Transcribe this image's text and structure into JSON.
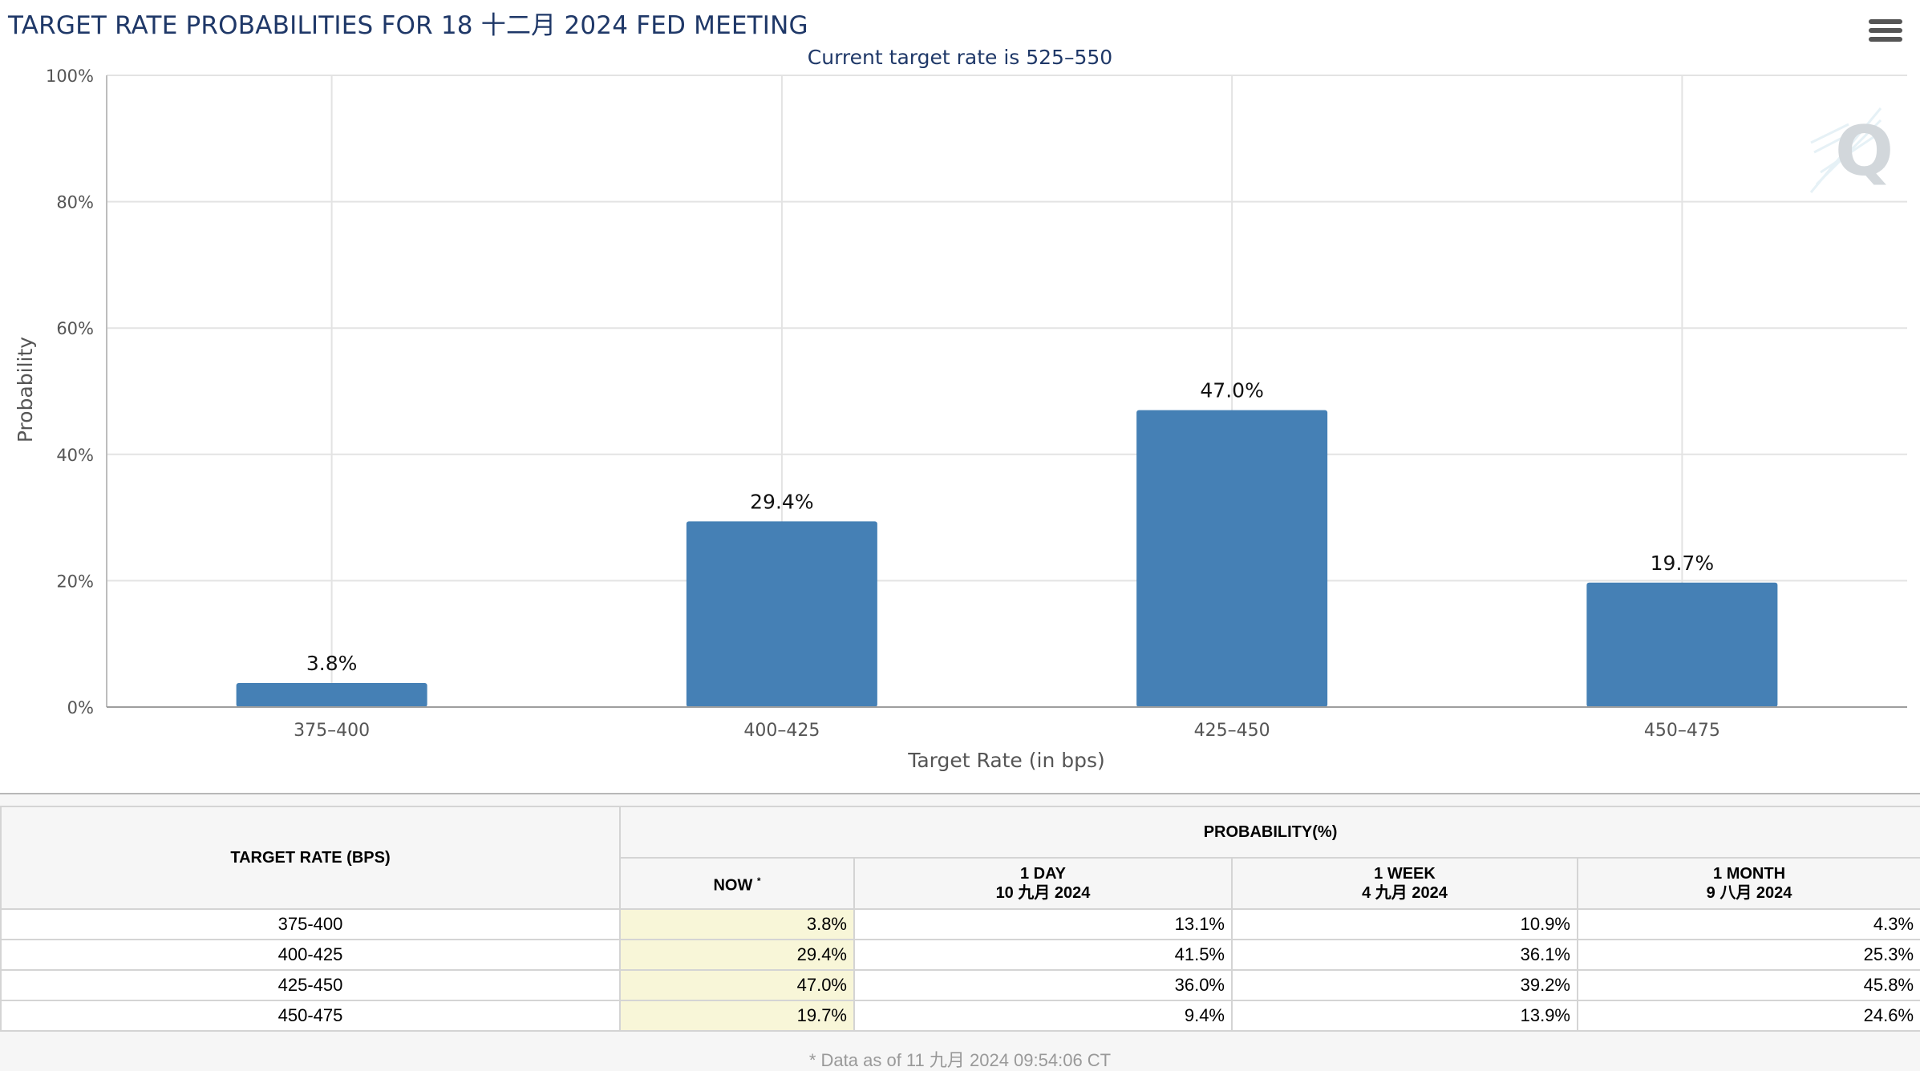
{
  "header": {
    "title": "TARGET RATE PROBABILITIES FOR 18 十二月 2024 FED MEETING",
    "subtitle": "Current target rate is 525–550"
  },
  "colors": {
    "bar": "#4580b5",
    "title": "#1f3868",
    "now_highlight": "#f8f6d8"
  },
  "chart_data": {
    "type": "bar",
    "title": "TARGET RATE PROBABILITIES FOR 18 十二月 2024 FED MEETING",
    "subtitle": "Current target rate is 525–550",
    "xlabel": "Target Rate (in bps)",
    "ylabel": "Probability",
    "categories": [
      "375–400",
      "400–425",
      "425–450",
      "450–475"
    ],
    "values": [
      3.8,
      29.4,
      47.0,
      19.7
    ],
    "data_labels": [
      "3.8%",
      "29.4%",
      "47.0%",
      "19.7%"
    ],
    "ylim": [
      0,
      100
    ],
    "yticks": [
      0,
      20,
      40,
      60,
      80,
      100
    ],
    "ytick_labels": [
      "0%",
      "20%",
      "40%",
      "60%",
      "80%",
      "100%"
    ],
    "grid": true,
    "legend": "none"
  },
  "table": {
    "target_header": "TARGET RATE (BPS)",
    "probability_header": "PROBABILITY(%)",
    "columns": [
      {
        "label": "NOW",
        "note": "*",
        "date": ""
      },
      {
        "label": "1 DAY",
        "date": "10 九月 2024"
      },
      {
        "label": "1 WEEK",
        "date": "4 九月 2024"
      },
      {
        "label": "1 MONTH",
        "date": "9 八月 2024"
      }
    ],
    "rows": [
      {
        "rate": "375-400",
        "now": "3.8%",
        "day": "13.1%",
        "week": "10.9%",
        "month": "4.3%"
      },
      {
        "rate": "400-425",
        "now": "29.4%",
        "day": "41.5%",
        "week": "36.1%",
        "month": "25.3%"
      },
      {
        "rate": "425-450",
        "now": "47.0%",
        "day": "36.0%",
        "week": "39.2%",
        "month": "45.8%"
      },
      {
        "rate": "450-475",
        "now": "19.7%",
        "day": "9.4%",
        "week": "13.9%",
        "month": "24.6%"
      }
    ],
    "footnote": "* Data as of 11 九月 2024 09:54:06 CT"
  }
}
